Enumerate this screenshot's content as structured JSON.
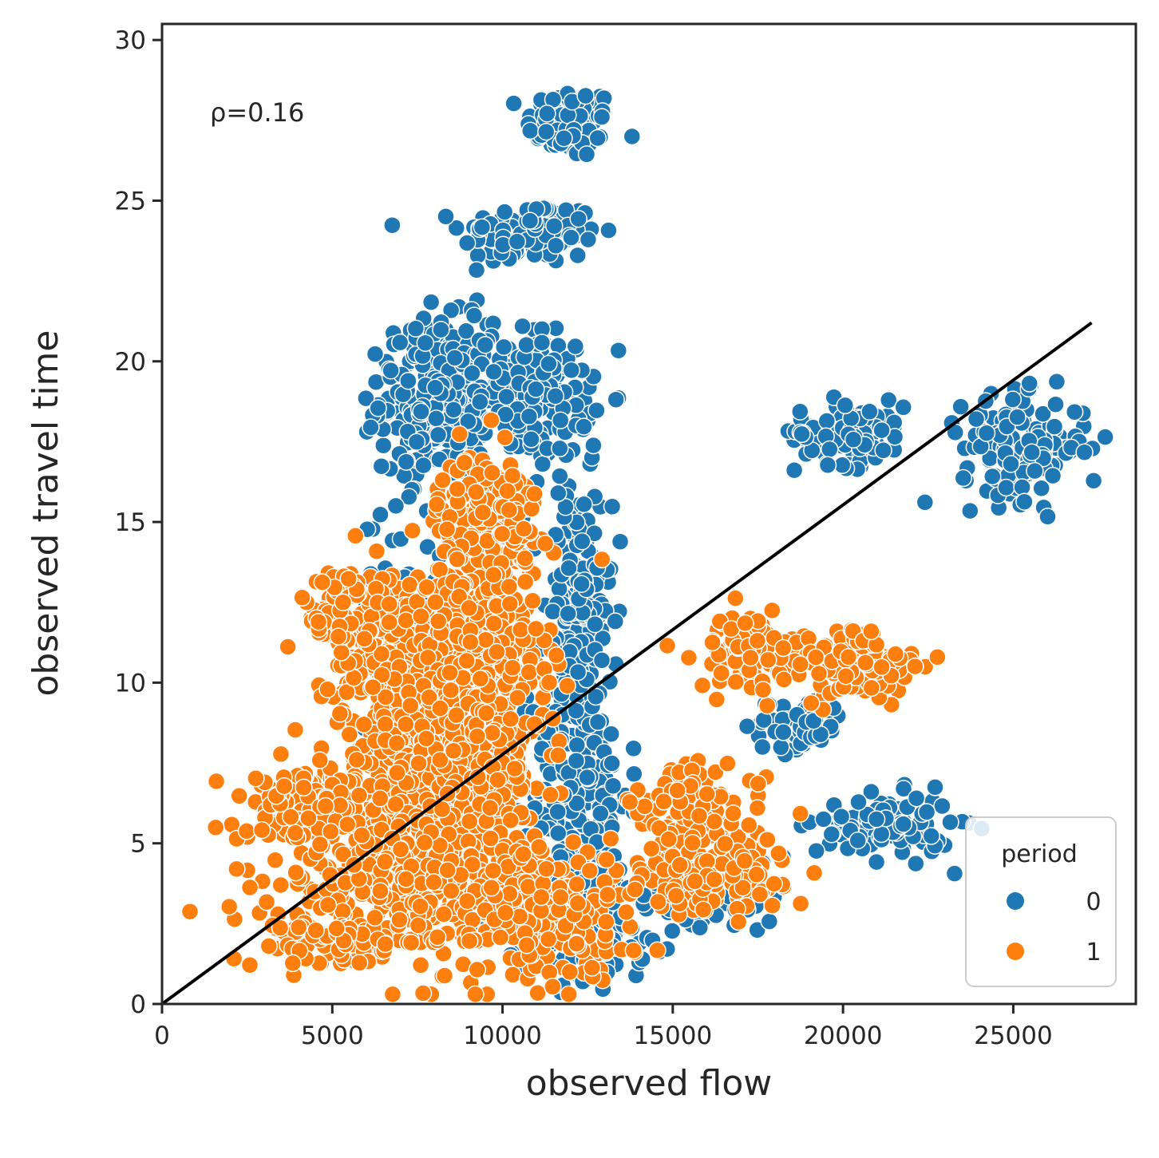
{
  "chart_data": {
    "type": "scatter",
    "xlabel": "observed flow",
    "ylabel": "observed travel time",
    "xlim": [
      0,
      28600
    ],
    "ylim": [
      0,
      30.5
    ],
    "xticks": [
      0,
      5000,
      10000,
      15000,
      20000,
      25000
    ],
    "yticks": [
      0,
      5,
      10,
      15,
      20,
      25,
      30
    ],
    "grid": false,
    "annotation": "ρ=0.16",
    "fit_line": {
      "x": [
        0,
        27300
      ],
      "y": [
        0,
        21.2
      ],
      "color": "#000000"
    },
    "legend": {
      "title": "period",
      "placement": "lower-right"
    },
    "series": [
      {
        "name": "0",
        "color": "#1f77b4",
        "clusters": [
          {
            "cx": 12000,
            "cy": 27.4,
            "sx": 650,
            "sy": 0.55,
            "n": 90
          },
          {
            "cx": 10800,
            "cy": 24.0,
            "sx": 1000,
            "sy": 0.5,
            "n": 130
          },
          {
            "cx": 8000,
            "cy": 18.8,
            "sx": 800,
            "sy": 1.2,
            "n": 260
          },
          {
            "cx": 11000,
            "cy": 19.0,
            "sx": 800,
            "sy": 1.0,
            "n": 180
          },
          {
            "cx": 12200,
            "cy": 12.0,
            "sx": 500,
            "sy": 2.2,
            "n": 170
          },
          {
            "cx": 12300,
            "cy": 6.5,
            "sx": 700,
            "sy": 2.3,
            "n": 190
          },
          {
            "cx": 12500,
            "cy": 2.5,
            "sx": 1300,
            "sy": 1.0,
            "n": 110
          },
          {
            "cx": 20200,
            "cy": 17.8,
            "sx": 800,
            "sy": 0.5,
            "n": 110
          },
          {
            "cx": 25300,
            "cy": 17.3,
            "sx": 900,
            "sy": 0.8,
            "n": 150
          },
          {
            "cx": 18600,
            "cy": 8.7,
            "sx": 700,
            "sy": 0.4,
            "n": 70
          },
          {
            "cx": 21200,
            "cy": 5.5,
            "sx": 1000,
            "sy": 0.5,
            "n": 110
          },
          {
            "cx": 16000,
            "cy": 3.3,
            "sx": 1000,
            "sy": 0.6,
            "n": 60
          },
          {
            "cx": 7000,
            "cy": 12.0,
            "sx": 600,
            "sy": 2.0,
            "n": 60
          }
        ]
      },
      {
        "name": "1",
        "color": "#ff7f0e",
        "clusters": [
          {
            "cx": 9600,
            "cy": 15.0,
            "sx": 750,
            "sy": 1.1,
            "n": 200
          },
          {
            "cx": 6700,
            "cy": 11.0,
            "sx": 900,
            "sy": 1.3,
            "n": 230
          },
          {
            "cx": 9300,
            "cy": 11.0,
            "sx": 1000,
            "sy": 1.3,
            "n": 260
          },
          {
            "cx": 7500,
            "cy": 7.5,
            "sx": 1300,
            "sy": 1.3,
            "n": 280
          },
          {
            "cx": 9500,
            "cy": 7.5,
            "sx": 900,
            "sy": 1.3,
            "n": 180
          },
          {
            "cx": 4300,
            "cy": 6.1,
            "sx": 900,
            "sy": 0.5,
            "n": 150
          },
          {
            "cx": 7500,
            "cy": 4.0,
            "sx": 2000,
            "sy": 1.2,
            "n": 380
          },
          {
            "cx": 11000,
            "cy": 2.8,
            "sx": 1400,
            "sy": 1.0,
            "n": 220
          },
          {
            "cx": 5000,
            "cy": 2.0,
            "sx": 800,
            "sy": 0.4,
            "n": 90
          },
          {
            "cx": 15700,
            "cy": 5.6,
            "sx": 1000,
            "sy": 0.9,
            "n": 150
          },
          {
            "cx": 16200,
            "cy": 3.8,
            "sx": 1000,
            "sy": 0.5,
            "n": 110
          },
          {
            "cx": 17300,
            "cy": 11.0,
            "sx": 800,
            "sy": 0.6,
            "n": 90
          },
          {
            "cx": 20600,
            "cy": 10.5,
            "sx": 900,
            "sy": 0.6,
            "n": 110
          },
          {
            "cx": 5000,
            "cy": 12.3,
            "sx": 500,
            "sy": 0.6,
            "n": 60
          }
        ]
      }
    ]
  }
}
